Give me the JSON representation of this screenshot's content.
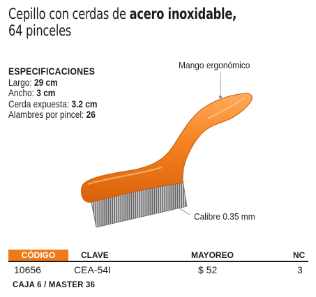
{
  "title": {
    "part1": "Cepillo con cerdas de ",
    "part2_bold": "acero inoxidable,",
    "line2": "64 pinceles"
  },
  "specs": {
    "heading": "ESPECIFICACIONES",
    "items": [
      {
        "label": "Largo: ",
        "value": "29 cm"
      },
      {
        "label": "Ancho: ",
        "value": "3 cm"
      },
      {
        "label": "Cerda expuesta: ",
        "value": "3.2 cm"
      },
      {
        "label": "Alambres por pincel: ",
        "value": "26"
      }
    ]
  },
  "callouts": {
    "handle": "Mango ergonómico",
    "gauge": "Calibre 0.35 mm"
  },
  "table": {
    "headers": {
      "codigo": "CÓDIGO",
      "clave": "CLAVE",
      "mayoreo": "MAYOREO",
      "nc": "NC"
    },
    "row": {
      "codigo": "10656",
      "clave": "CEA-54I",
      "mayoreo": "$ 52",
      "nc": "3"
    }
  },
  "footer": "CAJA 6 / MASTER 36",
  "colors": {
    "accent": "#f07a1a",
    "handle": "#f58220"
  }
}
